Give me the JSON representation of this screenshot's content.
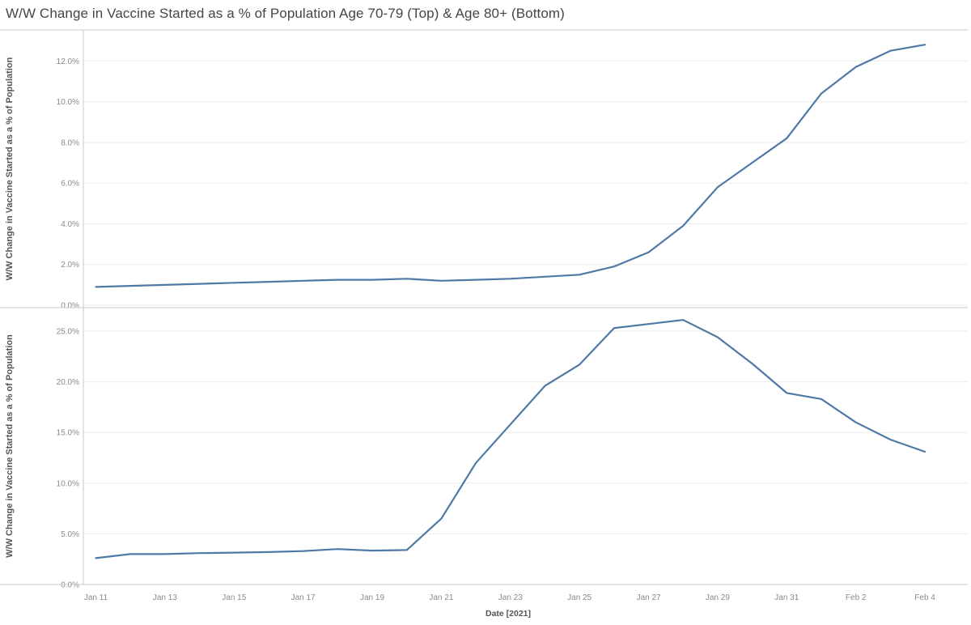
{
  "title": "W/W Change in Vaccine Started as a % of Population Age 70-79 (Top) & Age 80+ (Bottom)",
  "colors": {
    "line": "#4e79a7",
    "gridline": "#ececec",
    "pane_border": "#c9c9c9",
    "tick_text": "#8a8a8a",
    "axis_title_text": "#555555",
    "title_text": "#454545",
    "background": "#ffffff"
  },
  "x_axis": {
    "title": "Date [2021]",
    "visible_tick_labels": [
      "Jan 11",
      "Jan 13",
      "Jan 15",
      "Jan 17",
      "Jan 19",
      "Jan 21",
      "Jan 23",
      "Jan 25",
      "Jan 27",
      "Jan 29",
      "Jan 31",
      "Feb 2",
      "Feb 4"
    ]
  },
  "chart_data": [
    {
      "type": "line",
      "pane": "top",
      "series_name": "Age 70-79",
      "title": "W/W Change in Vaccine Started as a % of Population Age 70-79",
      "ylabel": "W/W Change in Vaccine Started as a % of Population",
      "xlabel": "Date [2021]",
      "ylim": [
        0,
        13.5
      ],
      "grid": "horizontal-only",
      "legend": "none",
      "y_ticks": [
        {
          "value": 0,
          "label": "0.0%"
        },
        {
          "value": 2,
          "label": "2.0%"
        },
        {
          "value": 4,
          "label": "4.0%"
        },
        {
          "value": 6,
          "label": "6.0%"
        },
        {
          "value": 8,
          "label": "8.0%"
        },
        {
          "value": 10,
          "label": "10.0%"
        },
        {
          "value": 12,
          "label": "12.0%"
        }
      ],
      "x": [
        "Jan 11",
        "Jan 12",
        "Jan 13",
        "Jan 14",
        "Jan 15",
        "Jan 16",
        "Jan 17",
        "Jan 18",
        "Jan 19",
        "Jan 20",
        "Jan 21",
        "Jan 22",
        "Jan 23",
        "Jan 24",
        "Jan 25",
        "Jan 26",
        "Jan 27",
        "Jan 28",
        "Jan 29",
        "Jan 30",
        "Jan 31",
        "Feb 1",
        "Feb 2",
        "Feb 3",
        "Feb 4"
      ],
      "values": [
        0.9,
        0.95,
        1.0,
        1.05,
        1.1,
        1.15,
        1.2,
        1.25,
        1.25,
        1.3,
        1.2,
        1.25,
        1.3,
        1.4,
        1.5,
        1.9,
        2.6,
        3.9,
        5.8,
        7.0,
        8.2,
        10.4,
        11.7,
        12.5,
        12.8
      ]
    },
    {
      "type": "line",
      "pane": "bottom",
      "series_name": "Age 80+",
      "title": "W/W Change in Vaccine Started as a % of Population Age 80+",
      "ylabel": "W/W Change in Vaccine Started as a % of Population",
      "xlabel": "Date [2021]",
      "ylim": [
        0,
        27.3
      ],
      "grid": "horizontal-only",
      "legend": "none",
      "y_ticks": [
        {
          "value": 0,
          "label": "0.0%"
        },
        {
          "value": 5,
          "label": "5.0%"
        },
        {
          "value": 10,
          "label": "10.0%"
        },
        {
          "value": 15,
          "label": "15.0%"
        },
        {
          "value": 20,
          "label": "20.0%"
        },
        {
          "value": 25,
          "label": "25.0%"
        }
      ],
      "x": [
        "Jan 11",
        "Jan 12",
        "Jan 13",
        "Jan 14",
        "Jan 15",
        "Jan 16",
        "Jan 17",
        "Jan 18",
        "Jan 19",
        "Jan 20",
        "Jan 21",
        "Jan 22",
        "Jan 23",
        "Jan 24",
        "Jan 25",
        "Jan 26",
        "Jan 27",
        "Jan 28",
        "Jan 29",
        "Jan 30",
        "Jan 31",
        "Feb 1",
        "Feb 2",
        "Feb 3",
        "Feb 4"
      ],
      "values": [
        2.6,
        3.0,
        3.0,
        3.1,
        3.15,
        3.2,
        3.3,
        3.5,
        3.35,
        3.4,
        6.5,
        12.0,
        15.8,
        19.6,
        21.7,
        25.3,
        25.7,
        26.1,
        24.4,
        21.8,
        18.9,
        18.3,
        16.0,
        14.3,
        13.1
      ]
    }
  ]
}
